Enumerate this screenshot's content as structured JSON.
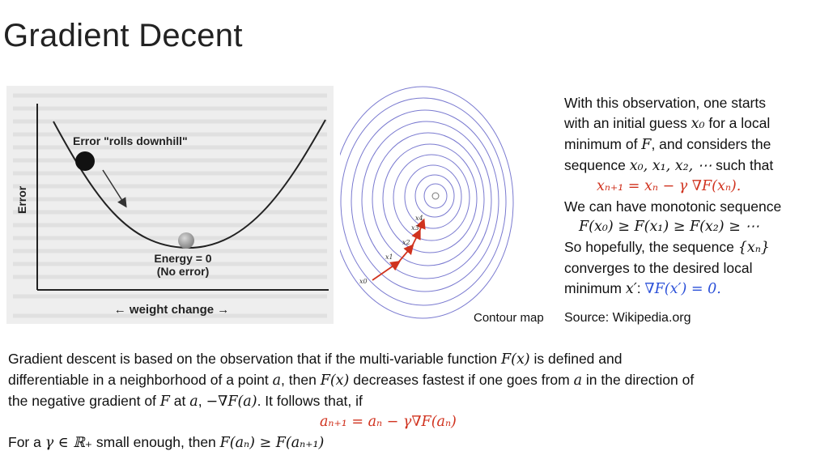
{
  "slide": {
    "title": "Gradient Decent"
  },
  "left_figure": {
    "error_label": "Error \"rolls downhill\"",
    "y_axis_label": "Error",
    "energy_label_1": "Energy = 0",
    "energy_label_2": "(No error)",
    "x_axis_label": "← weight change →"
  },
  "contour_figure": {
    "caption": "Contour map",
    "labels": [
      "x0",
      "x1",
      "x2",
      "x3",
      "x4"
    ]
  },
  "right_text": {
    "line1": "With this observation, one starts",
    "line2a": "with an initial guess ",
    "line2b": "x₀",
    "line2c": " for a local",
    "line3a": "minimum of ",
    "line3b": "F",
    "line3c": ", and considers the",
    "line4a": "sequence ",
    "line4b": "x₀, x₁, x₂, ⋯",
    "line4c": " such that",
    "formula1": "xₙ₊₁ = xₙ − γ  ∇F(xₙ).",
    "line5": "We can have monotonic sequence",
    "formula2": "F(x₀) ≥ F(x₁) ≥ F(x₂) ≥ ⋯",
    "line6a": "So hopefully, the sequence ",
    "line6b": "{xₙ}",
    "line7": "converges to the desired local",
    "line8a": "minimum ",
    "line8b": "x′",
    "line8c": ": ",
    "line8d": "∇F(x′) = 0.",
    "source": "Source: Wikipedia.org"
  },
  "bottom_text": {
    "p1a": "Gradient descent is based on the observation that if the multi-variable function ",
    "p1b": "F(x)",
    "p1c": " is defined and",
    "p2a": "differentiable in a neighborhood of a point ",
    "p2b": "a",
    "p2c": ", then ",
    "p2d": "F(x)",
    "p2e": " decreases fastest if one goes from ",
    "p2f": "a",
    "p2g": " in the direction of",
    "p3a": "the negative gradient of ",
    "p3b": "F",
    "p3c": " at ",
    "p3d": "a",
    "p3e": ", ",
    "p3f": "−∇F(a)",
    "p3g": ". It follows that, if",
    "formula": "aₙ₊₁ = aₙ − γ∇F(aₙ)",
    "p4a": "For a ",
    "p4b": "γ ∈ ℝ₊",
    "p4c": " small enough, then ",
    "p4d": "F(aₙ) ≥ F(aₙ₊₁)"
  }
}
